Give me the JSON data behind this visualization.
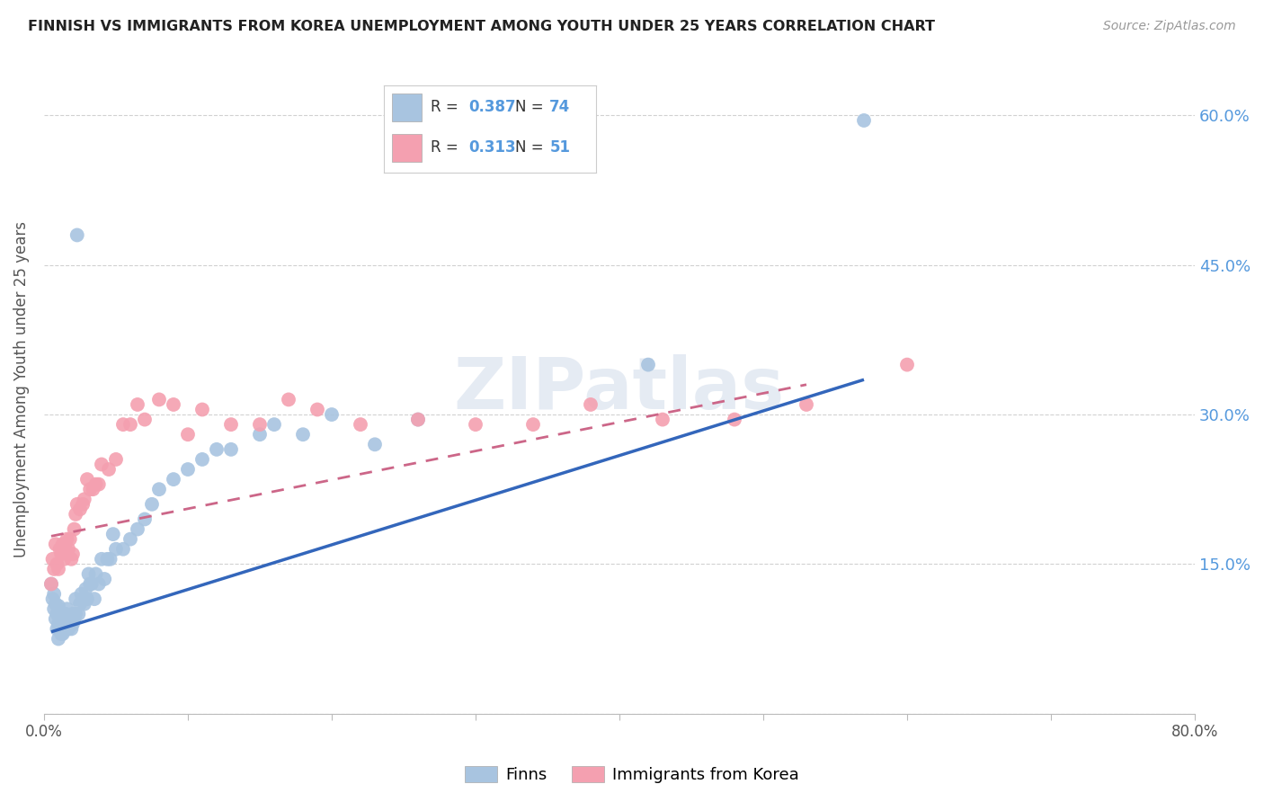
{
  "title": "FINNISH VS IMMIGRANTS FROM KOREA UNEMPLOYMENT AMONG YOUTH UNDER 25 YEARS CORRELATION CHART",
  "source": "Source: ZipAtlas.com",
  "ylabel": "Unemployment Among Youth under 25 years",
  "xlim": [
    0.0,
    0.8
  ],
  "ylim": [
    0.0,
    0.65
  ],
  "yticks": [
    0.0,
    0.15,
    0.3,
    0.45,
    0.6
  ],
  "ytick_labels": [
    "",
    "15.0%",
    "30.0%",
    "45.0%",
    "60.0%"
  ],
  "xtick_labels": [
    "0.0%",
    "80.0%"
  ],
  "xtick_positions": [
    0.0,
    0.8
  ],
  "finn_R": 0.387,
  "finn_N": 74,
  "korea_R": 0.313,
  "korea_N": 51,
  "finn_color": "#a8c4e0",
  "korea_color": "#f4a0b0",
  "finn_line_color": "#3366bb",
  "korea_line_color": "#cc6688",
  "legend_label_finns": "Finns",
  "legend_label_korea": "Immigrants from Korea",
  "watermark": "ZIPatlas",
  "finn_scatter_x": [
    0.005,
    0.006,
    0.007,
    0.007,
    0.008,
    0.008,
    0.009,
    0.009,
    0.01,
    0.01,
    0.01,
    0.011,
    0.011,
    0.012,
    0.012,
    0.012,
    0.013,
    0.013,
    0.013,
    0.014,
    0.014,
    0.015,
    0.015,
    0.016,
    0.016,
    0.017,
    0.017,
    0.018,
    0.019,
    0.019,
    0.02,
    0.02,
    0.021,
    0.022,
    0.022,
    0.023,
    0.024,
    0.025,
    0.026,
    0.027,
    0.028,
    0.029,
    0.03,
    0.031,
    0.032,
    0.033,
    0.035,
    0.036,
    0.038,
    0.04,
    0.042,
    0.044,
    0.046,
    0.048,
    0.05,
    0.055,
    0.06,
    0.065,
    0.07,
    0.075,
    0.08,
    0.09,
    0.1,
    0.11,
    0.12,
    0.13,
    0.15,
    0.16,
    0.18,
    0.2,
    0.23,
    0.26,
    0.42,
    0.57
  ],
  "finn_scatter_y": [
    0.13,
    0.115,
    0.105,
    0.12,
    0.095,
    0.11,
    0.1,
    0.085,
    0.09,
    0.108,
    0.075,
    0.095,
    0.085,
    0.095,
    0.1,
    0.08,
    0.09,
    0.1,
    0.08,
    0.09,
    0.085,
    0.1,
    0.095,
    0.095,
    0.105,
    0.09,
    0.085,
    0.095,
    0.085,
    0.09,
    0.1,
    0.09,
    0.095,
    0.1,
    0.115,
    0.48,
    0.1,
    0.11,
    0.12,
    0.115,
    0.11,
    0.125,
    0.115,
    0.14,
    0.13,
    0.13,
    0.115,
    0.14,
    0.13,
    0.155,
    0.135,
    0.155,
    0.155,
    0.18,
    0.165,
    0.165,
    0.175,
    0.185,
    0.195,
    0.21,
    0.225,
    0.235,
    0.245,
    0.255,
    0.265,
    0.265,
    0.28,
    0.29,
    0.28,
    0.3,
    0.27,
    0.295,
    0.35,
    0.595
  ],
  "korea_scatter_x": [
    0.005,
    0.006,
    0.007,
    0.008,
    0.009,
    0.01,
    0.011,
    0.012,
    0.013,
    0.014,
    0.015,
    0.016,
    0.017,
    0.018,
    0.019,
    0.02,
    0.021,
    0.022,
    0.023,
    0.025,
    0.027,
    0.028,
    0.03,
    0.032,
    0.034,
    0.036,
    0.038,
    0.04,
    0.045,
    0.05,
    0.055,
    0.06,
    0.065,
    0.07,
    0.08,
    0.09,
    0.1,
    0.11,
    0.13,
    0.15,
    0.17,
    0.19,
    0.22,
    0.26,
    0.3,
    0.34,
    0.38,
    0.43,
    0.48,
    0.53,
    0.6
  ],
  "korea_scatter_y": [
    0.13,
    0.155,
    0.145,
    0.17,
    0.15,
    0.145,
    0.165,
    0.16,
    0.17,
    0.155,
    0.165,
    0.175,
    0.165,
    0.175,
    0.155,
    0.16,
    0.185,
    0.2,
    0.21,
    0.205,
    0.21,
    0.215,
    0.235,
    0.225,
    0.225,
    0.23,
    0.23,
    0.25,
    0.245,
    0.255,
    0.29,
    0.29,
    0.31,
    0.295,
    0.315,
    0.31,
    0.28,
    0.305,
    0.29,
    0.29,
    0.315,
    0.305,
    0.29,
    0.295,
    0.29,
    0.29,
    0.31,
    0.295,
    0.295,
    0.31,
    0.35
  ],
  "finn_line_x": [
    0.005,
    0.57
  ],
  "finn_line_y": [
    0.082,
    0.335
  ],
  "korea_line_x": [
    0.005,
    0.53
  ],
  "korea_line_y": [
    0.178,
    0.33
  ]
}
